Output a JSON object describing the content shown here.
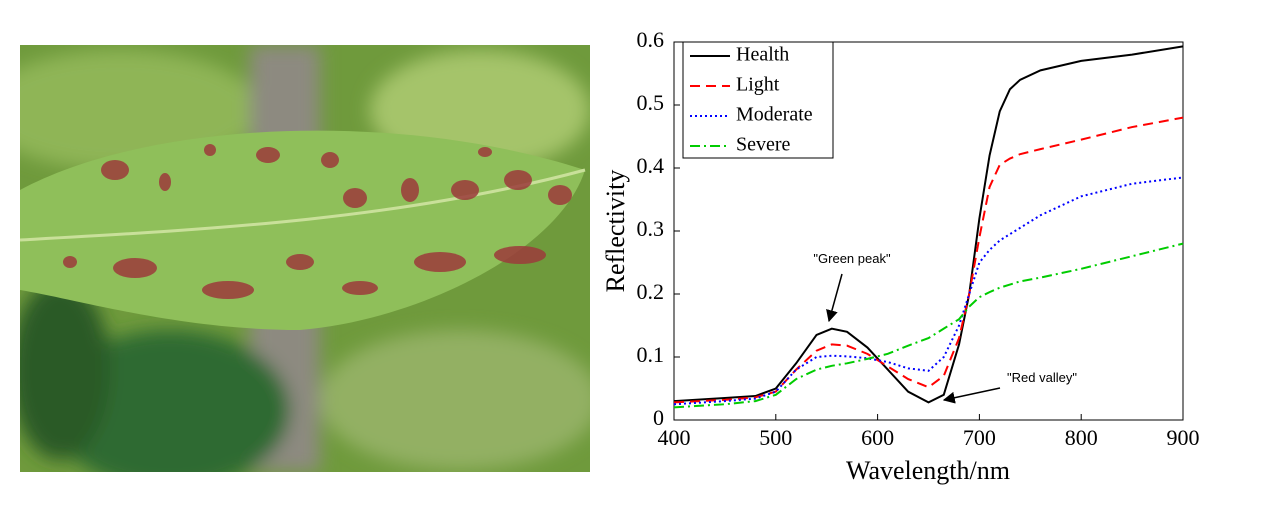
{
  "chart_data": {
    "type": "line",
    "xlabel": "Wavelength/nm",
    "ylabel": "Reflectivity",
    "x": [
      400,
      450,
      480,
      500,
      520,
      540,
      555,
      570,
      590,
      610,
      630,
      650,
      665,
      680,
      690,
      700,
      710,
      720,
      730,
      740,
      760,
      800,
      850,
      900
    ],
    "series": [
      {
        "name": "Health",
        "color": "#000000",
        "dash": "solid",
        "values": [
          0.03,
          0.035,
          0.038,
          0.05,
          0.09,
          0.135,
          0.145,
          0.14,
          0.115,
          0.08,
          0.045,
          0.028,
          0.04,
          0.12,
          0.2,
          0.32,
          0.42,
          0.49,
          0.525,
          0.54,
          0.555,
          0.57,
          0.58,
          0.593
        ]
      },
      {
        "name": "Light",
        "color": "#ff0000",
        "dash": "dashed",
        "values": [
          0.028,
          0.032,
          0.036,
          0.045,
          0.08,
          0.11,
          0.12,
          0.118,
          0.105,
          0.085,
          0.065,
          0.052,
          0.07,
          0.13,
          0.2,
          0.29,
          0.37,
          0.405,
          0.415,
          0.422,
          0.43,
          0.445,
          0.465,
          0.48
        ]
      },
      {
        "name": "Moderate",
        "color": "#0000ff",
        "dash": "dotted",
        "values": [
          0.025,
          0.03,
          0.034,
          0.045,
          0.08,
          0.1,
          0.102,
          0.101,
          0.098,
          0.092,
          0.082,
          0.078,
          0.1,
          0.15,
          0.2,
          0.25,
          0.27,
          0.285,
          0.295,
          0.305,
          0.325,
          0.355,
          0.375,
          0.385
        ]
      },
      {
        "name": "Severe",
        "color": "#00cc00",
        "dash": "dashdot",
        "values": [
          0.02,
          0.025,
          0.03,
          0.04,
          0.065,
          0.08,
          0.086,
          0.09,
          0.097,
          0.105,
          0.118,
          0.13,
          0.145,
          0.16,
          0.18,
          0.195,
          0.203,
          0.21,
          0.215,
          0.22,
          0.226,
          0.24,
          0.26,
          0.28
        ]
      }
    ],
    "xlim": [
      400,
      900
    ],
    "xticks": [
      400,
      500,
      600,
      700,
      800,
      900
    ],
    "ylim": [
      0,
      0.6
    ],
    "yticks": [
      0,
      0.1,
      0.2,
      0.3,
      0.4,
      0.5,
      0.6
    ],
    "legend": "upper left",
    "annotations": [
      {
        "text": "\"Green peak\""
      },
      {
        "text": "\"Red valley\""
      }
    ]
  }
}
